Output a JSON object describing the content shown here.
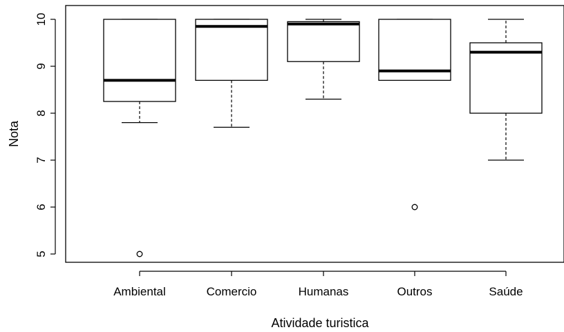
{
  "chart_data": {
    "type": "boxplot",
    "xlabel": "Atividade turistica",
    "ylabel": "Nota",
    "ylim": [
      4.8,
      10.2
    ],
    "y_ticks": [
      5,
      6,
      7,
      8,
      9,
      10
    ],
    "categories": [
      "Ambiental",
      "Comercio",
      "Humanas",
      "Outros",
      "Saúde"
    ],
    "boxes": [
      {
        "category": "Ambiental",
        "whisker_low": 7.8,
        "q1": 8.25,
        "median": 8.7,
        "q3": 10.0,
        "whisker_high": 10.0,
        "outliers": [
          5.0
        ]
      },
      {
        "category": "Comercio",
        "whisker_low": 7.7,
        "q1": 8.7,
        "median": 9.85,
        "q3": 10.0,
        "whisker_high": 10.0,
        "outliers": []
      },
      {
        "category": "Humanas",
        "whisker_low": 8.3,
        "q1": 9.1,
        "median": 9.9,
        "q3": 9.95,
        "whisker_high": 10.0,
        "outliers": []
      },
      {
        "category": "Outros",
        "whisker_low": 8.7,
        "q1": 8.7,
        "median": 8.9,
        "q3": 10.0,
        "whisker_high": 10.0,
        "outliers": [
          6.0
        ]
      },
      {
        "category": "Saúde",
        "whisker_low": 7.0,
        "q1": 8.0,
        "median": 9.3,
        "q3": 9.5,
        "whisker_high": 10.0,
        "outliers": []
      }
    ],
    "grid": false,
    "colors": {
      "box_fill": "#ffffff",
      "stroke": "#000000"
    }
  }
}
